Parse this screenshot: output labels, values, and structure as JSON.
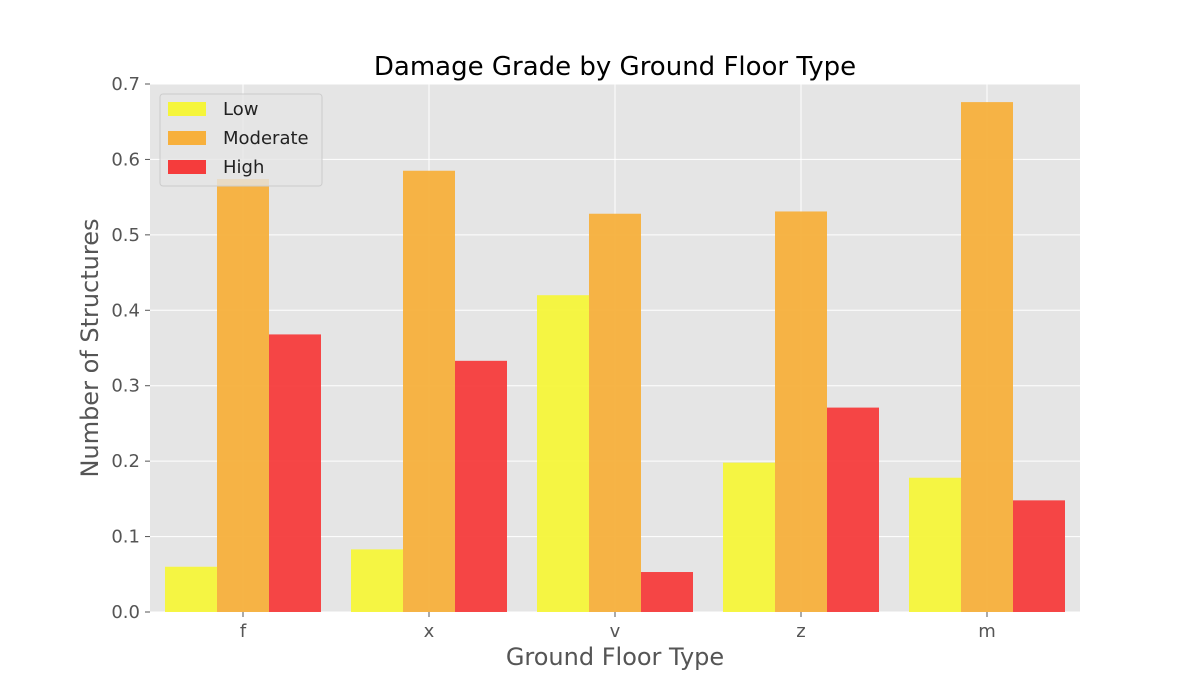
{
  "chart_data": {
    "type": "bar",
    "title": "Damage Grade by Ground Floor Type",
    "xlabel": "Ground Floor Type",
    "ylabel": "Number of Structures",
    "categories": [
      "f",
      "x",
      "v",
      "z",
      "m"
    ],
    "series": [
      {
        "name": "Low",
        "color": "#f5f53a",
        "values": [
          0.06,
          0.083,
          0.42,
          0.198,
          0.178
        ]
      },
      {
        "name": "Moderate",
        "color": "#f7b03c",
        "values": [
          0.574,
          0.585,
          0.528,
          0.531,
          0.676
        ]
      },
      {
        "name": "High",
        "color": "#f53c3c",
        "values": [
          0.368,
          0.333,
          0.053,
          0.271,
          0.148
        ]
      }
    ],
    "ylim": [
      0,
      0.7
    ],
    "yticks": [
      0.0,
      0.1,
      0.2,
      0.3,
      0.4,
      0.5,
      0.6,
      0.7
    ],
    "ytick_labels": [
      "0.0",
      "0.1",
      "0.2",
      "0.3",
      "0.4",
      "0.5",
      "0.6",
      "0.7"
    ],
    "grid": true,
    "legend_position": "top-left",
    "background": "#e5e5e5"
  }
}
